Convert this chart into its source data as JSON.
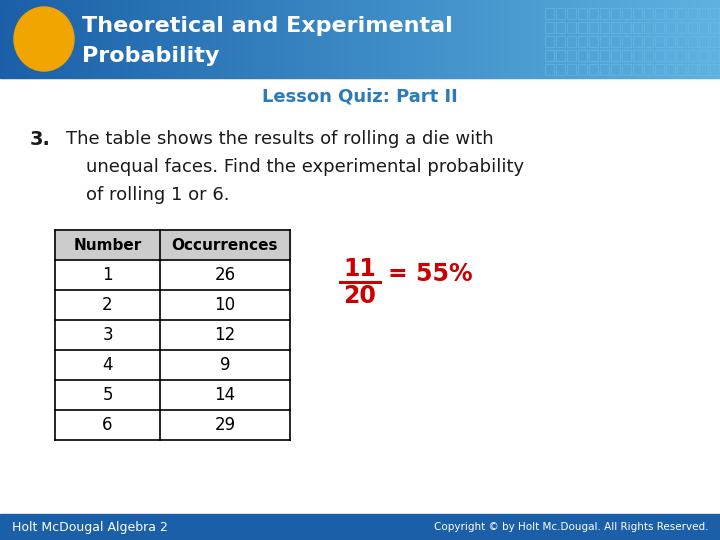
{
  "title_line1": "Theoretical and Experimental",
  "title_line2": "Probability",
  "subtitle": "Lesson Quiz: Part II",
  "question_number": "3.",
  "question_text_line1": "The table shows the results of rolling a die with",
  "question_text_line2": "unequal faces. Find the experimental probability",
  "question_text_line3": "of rolling 1 or 6.",
  "table_headers": [
    "Number",
    "Occurrences"
  ],
  "table_data": [
    [
      1,
      26
    ],
    [
      2,
      10
    ],
    [
      3,
      12
    ],
    [
      4,
      9
    ],
    [
      5,
      14
    ],
    [
      6,
      29
    ]
  ],
  "fraction_num": "11",
  "fraction_den": "20",
  "fraction_result": "= 55%",
  "header_color_left": "#1a5fa8",
  "header_color_right": "#5db3e0",
  "title_color": "#ffffff",
  "subtitle_color": "#2b7bba",
  "question_color": "#1a1a1a",
  "answer_color": "#cc0000",
  "footer_text_left": "Holt McDougal Algebra 2",
  "footer_text_right": "Copyright © by Holt Mc.Dougal. All Rights Reserved.",
  "footer_bg": "#1a5fa8",
  "bg_color": "#ffffff",
  "ellipse_color": "#f0a500",
  "table_header_bg": "#cccccc"
}
